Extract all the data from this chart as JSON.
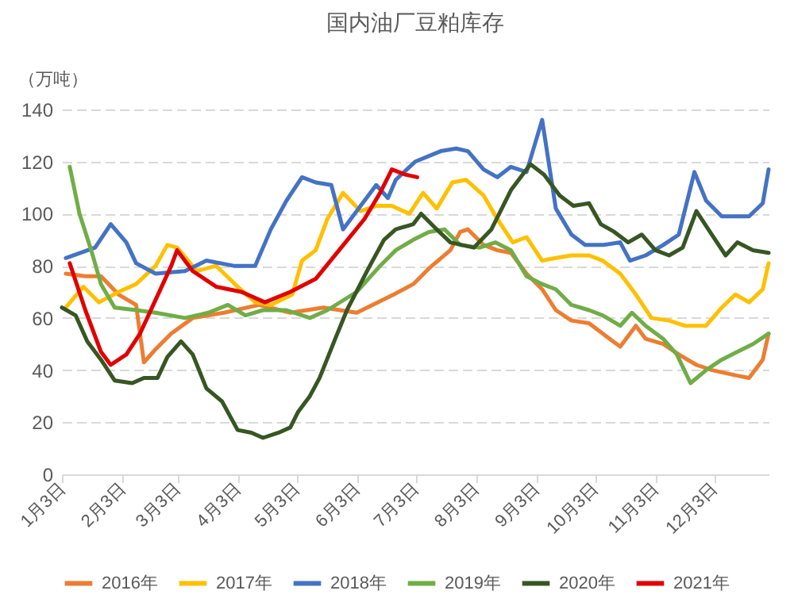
{
  "chart_data": {
    "type": "line",
    "title": "国内油厂豆粕库存",
    "ylabel": "（万吨）",
    "legend": "bottom",
    "grid": "y",
    "marker": "none",
    "line_style": "solid",
    "xlim": [
      "--01-03",
      "--12-31"
    ],
    "xticks": [
      {
        "value": "--01-03",
        "label": "1月3日"
      },
      {
        "value": "--02-03",
        "label": "2月3日"
      },
      {
        "value": "--03-03",
        "label": "3月3日"
      },
      {
        "value": "--04-03",
        "label": "4月3日"
      },
      {
        "value": "--05-03",
        "label": "5月3日"
      },
      {
        "value": "--06-03",
        "label": "6月3日"
      },
      {
        "value": "--07-03",
        "label": "7月3日"
      },
      {
        "value": "--08-03",
        "label": "8月3日"
      },
      {
        "value": "--09-03",
        "label": "9月3日"
      },
      {
        "value": "--10-03",
        "label": "10月3日"
      },
      {
        "value": "--11-03",
        "label": "11月3日"
      },
      {
        "value": "--12-03",
        "label": "12月3日"
      }
    ],
    "ylim": [
      0,
      140
    ],
    "yticks": [
      0,
      20,
      40,
      60,
      80,
      100,
      120,
      140
    ],
    "series": [
      {
        "name": "2016年",
        "color": "#ed7d31",
        "x": [
          "--01-05",
          "--01-15",
          "--01-23",
          "--02-01",
          "--02-10",
          "--02-14",
          "--02-20",
          "--02-28",
          "--03-11",
          "--03-27",
          "--04-14",
          "--04-30",
          "--05-17",
          "--06-03",
          "--06-22",
          "--07-02",
          "--07-10",
          "--07-21",
          "--07-26",
          "--07-30",
          "--08-07",
          "--08-14",
          "--08-21",
          "--08-29",
          "--09-06",
          "--09-13",
          "--09-21",
          "--09-30",
          "--10-07",
          "--10-16",
          "--10-24",
          "--10-29",
          "--11-07",
          "--11-15",
          "--11-24",
          "--12-02",
          "--12-14",
          "--12-21",
          "--12-28",
          "--12-31"
        ],
        "values": [
          77,
          76,
          76,
          69,
          65,
          43,
          48,
          54,
          60,
          62,
          65,
          62,
          64,
          62,
          69,
          73,
          79,
          86,
          93,
          94,
          88,
          86,
          85,
          77,
          71,
          63,
          59,
          58,
          54,
          49,
          57,
          52,
          50,
          46,
          42,
          40,
          38,
          37,
          44,
          54
        ]
      },
      {
        "name": "2017年",
        "color": "#ffc000",
        "x": [
          "--01-05",
          "--01-14",
          "--01-22",
          "--02-01",
          "--02-10",
          "--02-20",
          "--02-26",
          "--03-03",
          "--03-13",
          "--03-23",
          "--04-03",
          "--04-12",
          "--04-20",
          "--05-01",
          "--05-06",
          "--05-13",
          "--05-19",
          "--05-27",
          "--06-05",
          "--06-13",
          "--06-21",
          "--06-30",
          "--07-07",
          "--07-14",
          "--07-22",
          "--07-29",
          "--08-07",
          "--08-14",
          "--08-22",
          "--08-29",
          "--09-06",
          "--09-13",
          "--09-21",
          "--09-30",
          "--10-07",
          "--10-16",
          "--10-24",
          "--11-01",
          "--11-10",
          "--11-18",
          "--11-29",
          "--12-07",
          "--12-14",
          "--12-21",
          "--12-28",
          "--12-31"
        ],
        "values": [
          64,
          72,
          66,
          70,
          73,
          80,
          88,
          87,
          78,
          80,
          72,
          66,
          65,
          69,
          82,
          86,
          98,
          108,
          101,
          103,
          103,
          100,
          108,
          102,
          112,
          113,
          107,
          98,
          89,
          91,
          82,
          83,
          84,
          84,
          82,
          77,
          69,
          60,
          59,
          57,
          57,
          64,
          69,
          66,
          71,
          81
        ]
      },
      {
        "name": "2018年",
        "color": "#4472c4",
        "x": [
          "--01-05",
          "--01-20",
          "--01-28",
          "--02-05",
          "--02-10",
          "--02-20",
          "--03-07",
          "--03-18",
          "--04-01",
          "--04-12",
          "--04-20",
          "--04-28",
          "--05-06",
          "--05-13",
          "--05-21",
          "--05-27",
          "--06-05",
          "--06-13",
          "--06-19",
          "--06-23",
          "--07-03",
          "--07-16",
          "--07-24",
          "--07-30",
          "--08-07",
          "--08-14",
          "--08-21",
          "--08-29",
          "--09-06",
          "--09-13",
          "--09-21",
          "--09-28",
          "--10-07",
          "--10-16",
          "--10-21",
          "--10-29",
          "--11-07",
          "--11-15",
          "--11-23",
          "--11-29",
          "--12-07",
          "--12-14",
          "--12-21",
          "--12-28",
          "--12-31"
        ],
        "values": [
          83,
          87,
          96,
          89,
          81,
          77,
          78,
          82,
          80,
          80,
          94,
          105,
          114,
          112,
          111,
          94,
          103,
          111,
          106,
          113,
          120,
          124,
          125,
          124,
          117,
          114,
          118,
          116,
          136,
          102,
          92,
          88,
          88,
          89,
          82,
          84,
          88,
          92,
          116,
          105,
          99,
          99,
          99,
          104,
          117
        ]
      },
      {
        "name": "2019年",
        "color": "#70ad47",
        "x": [
          "--01-07",
          "--01-12",
          "--01-18",
          "--01-23",
          "--01-30",
          "--02-10",
          "--02-20",
          "--03-07",
          "--03-19",
          "--03-29",
          "--04-07",
          "--04-16",
          "--04-28",
          "--05-10",
          "--05-19",
          "--06-03",
          "--06-15",
          "--06-23",
          "--07-02",
          "--07-10",
          "--07-18",
          "--07-26",
          "--08-05",
          "--08-13",
          "--08-21",
          "--08-29",
          "--09-06",
          "--09-13",
          "--09-21",
          "--09-30",
          "--10-07",
          "--10-16",
          "--10-22",
          "--10-29",
          "--11-07",
          "--11-14",
          "--11-21",
          "--11-29",
          "--12-07",
          "--12-15",
          "--12-23",
          "--12-31"
        ],
        "values": [
          118,
          100,
          86,
          73,
          64,
          63,
          62,
          60,
          62,
          65,
          61,
          63,
          63,
          60,
          63,
          70,
          80,
          86,
          90,
          93,
          94,
          88,
          87,
          89,
          86,
          76,
          73,
          71,
          65,
          63,
          61,
          57,
          62,
          57,
          52,
          46,
          35,
          40,
          44,
          47,
          50,
          54
        ]
      },
      {
        "name": "2020年",
        "color": "#375623",
        "x": [
          "--01-03",
          "--01-10",
          "--01-16",
          "--01-23",
          "--01-30",
          "--02-08",
          "--02-14",
          "--02-21",
          "--02-26",
          "--03-05",
          "--03-11",
          "--03-18",
          "--03-26",
          "--04-03",
          "--04-10",
          "--04-16",
          "--04-24",
          "--04-30",
          "--05-04",
          "--05-10",
          "--05-15",
          "--05-23",
          "--05-29",
          "--06-09",
          "--06-17",
          "--06-23",
          "--07-02",
          "--07-06",
          "--07-14",
          "--07-21",
          "--08-02",
          "--08-11",
          "--08-21",
          "--08-31",
          "--09-07",
          "--09-15",
          "--09-22",
          "--09-30",
          "--10-06",
          "--10-13",
          "--10-20",
          "--10-27",
          "--11-03",
          "--11-10",
          "--11-17",
          "--11-24",
          "--12-01",
          "--12-09",
          "--12-15",
          "--12-23",
          "--12-31"
        ],
        "values": [
          64,
          61,
          51,
          44,
          36,
          35,
          37,
          37,
          45,
          51,
          46,
          33,
          28,
          17,
          16,
          14,
          16,
          18,
          24,
          30,
          37,
          52,
          63,
          79,
          90,
          94,
          96,
          100,
          94,
          89,
          87,
          94,
          109,
          119,
          115,
          107,
          103,
          104,
          96,
          93,
          89,
          92,
          86,
          84,
          87,
          101,
          93,
          84,
          89,
          86,
          85
        ]
      },
      {
        "name": "2021年",
        "color": "#e00000",
        "x": [
          "--01-07",
          "--01-15",
          "--01-23",
          "--01-28",
          "--02-05",
          "--02-12",
          "--02-20",
          "--02-28",
          "--03-03",
          "--03-11",
          "--03-23",
          "--04-05",
          "--04-17",
          "--04-30",
          "--05-13",
          "--05-25",
          "--06-07",
          "--06-15",
          "--06-21",
          "--06-28",
          "--07-04"
        ],
        "values": [
          81,
          63,
          47,
          42,
          46,
          54,
          67,
          80,
          86,
          78,
          72,
          70,
          66,
          70,
          75,
          86,
          98,
          108,
          117,
          115,
          114
        ]
      }
    ]
  }
}
